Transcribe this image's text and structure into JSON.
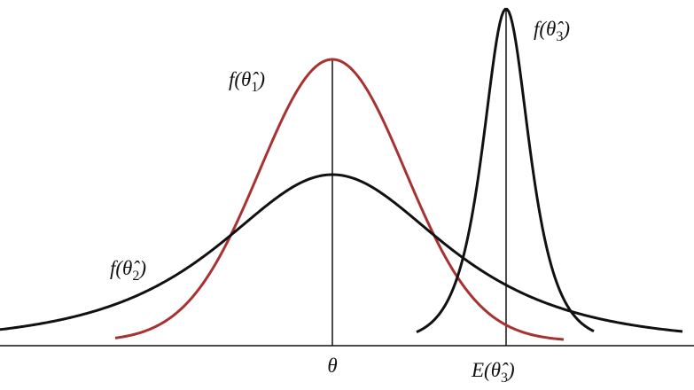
{
  "labels": {
    "f1": {
      "lead": "f(θ̂",
      "sub": "1",
      "close": ")"
    },
    "f2": {
      "lead": "f(θ̂",
      "sub": "2",
      "close": ")"
    },
    "f3": {
      "lead": "f(θ̂",
      "sub": "3",
      "close": ")"
    },
    "theta": "θ",
    "e3": {
      "lead": "E(θ̂",
      "sub": "3",
      "close": ")"
    }
  }
}
